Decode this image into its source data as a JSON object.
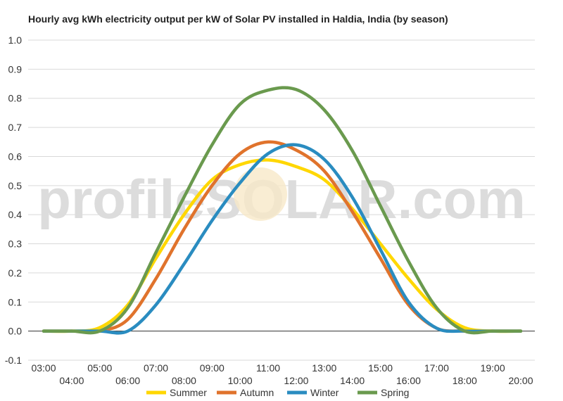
{
  "chart_data": {
    "type": "line",
    "title": "Hourly avg kWh electricity output per kW of Solar PV installed in Haldia, India (by season)",
    "xlabel": "",
    "ylabel": "",
    "ylim": [
      -0.1,
      1.0
    ],
    "y_ticks": [
      "1.0",
      "0.9",
      "0.8",
      "0.7",
      "0.6",
      "0.5",
      "0.4",
      "0.3",
      "0.2",
      "0.1",
      "0.0",
      "-0.1"
    ],
    "x_tick_labels": [
      "03:00",
      "04:00",
      "05:00",
      "06:00",
      "07:00",
      "08:00",
      "09:00",
      "10:00",
      "11:00",
      "12:00",
      "13:00",
      "14:00",
      "15:00",
      "16:00",
      "17:00",
      "18:00",
      "19:00",
      "20:00"
    ],
    "x": [
      3,
      4,
      5,
      6,
      7,
      8,
      9,
      10,
      11,
      12,
      13,
      14,
      15,
      16,
      17,
      18,
      19,
      20
    ],
    "grid": true,
    "legend_position": "bottom",
    "watermark": "profileSOLAR.com",
    "series": [
      {
        "name": "Summer",
        "color": "#FFD700",
        "values": [
          0.0,
          0.0,
          0.012,
          0.09,
          0.25,
          0.4,
          0.52,
          0.572,
          0.588,
          0.565,
          0.52,
          0.42,
          0.3,
          0.18,
          0.075,
          0.012,
          0.0,
          0.0
        ]
      },
      {
        "name": "Autumn",
        "color": "#E0732C",
        "values": [
          0.0,
          0.0,
          0.0,
          0.04,
          0.18,
          0.35,
          0.5,
          0.61,
          0.65,
          0.622,
          0.55,
          0.41,
          0.25,
          0.09,
          0.01,
          0.0,
          0.0,
          0.0
        ]
      },
      {
        "name": "Winter",
        "color": "#2A8CC0",
        "values": [
          0.0,
          0.0,
          0.0,
          0.0,
          0.09,
          0.23,
          0.38,
          0.51,
          0.61,
          0.64,
          0.59,
          0.46,
          0.28,
          0.1,
          0.01,
          0.0,
          0.0,
          0.0
        ]
      },
      {
        "name": "Spring",
        "color": "#6A9A4E",
        "values": [
          0.0,
          0.0,
          0.0,
          0.08,
          0.27,
          0.46,
          0.64,
          0.78,
          0.828,
          0.83,
          0.76,
          0.62,
          0.43,
          0.24,
          0.08,
          0.0,
          0.0,
          0.0
        ]
      }
    ]
  }
}
